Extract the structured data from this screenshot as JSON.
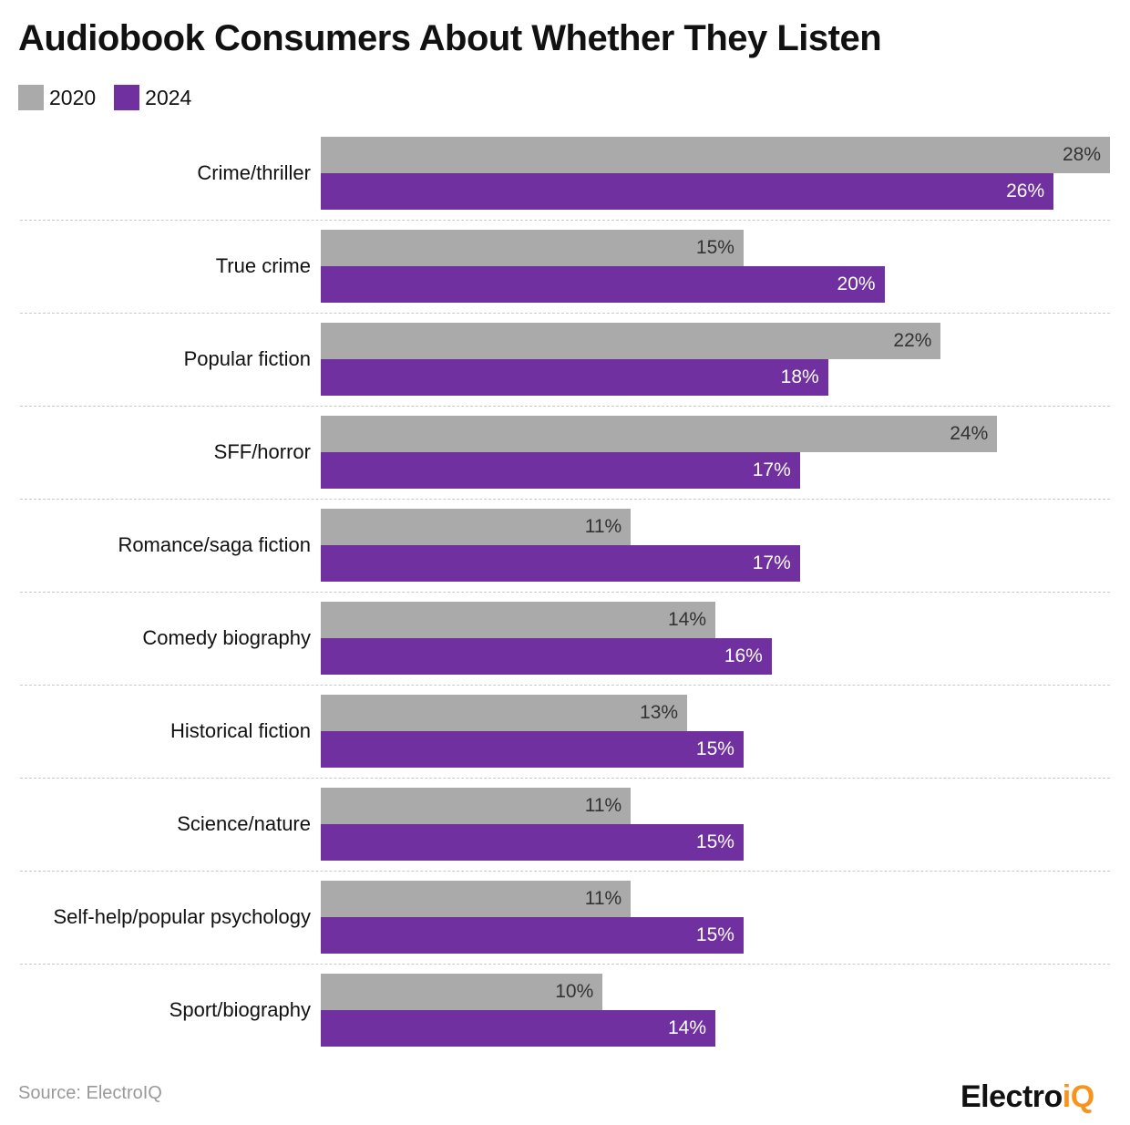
{
  "chart_data": {
    "type": "bar",
    "orientation": "horizontal",
    "title": "Audiobook Consumers About Whether They Listen",
    "categories": [
      "Crime/thriller",
      "True crime",
      "Popular fiction",
      "SFF/horror",
      "Romance/saga fiction",
      "Comedy biography",
      "Historical fiction",
      "Science/nature",
      "Self-help/popular psychology",
      "Sport/biography"
    ],
    "series": [
      {
        "name": "2020",
        "color": "#aaaaaa",
        "values": [
          28,
          15,
          22,
          24,
          11,
          14,
          13,
          11,
          11,
          10
        ]
      },
      {
        "name": "2024",
        "color": "#7030a0",
        "values": [
          26,
          20,
          18,
          17,
          17,
          16,
          15,
          15,
          15,
          14
        ]
      }
    ],
    "value_suffix": "%",
    "xlim": [
      0,
      28
    ],
    "grid": false,
    "legend_position": "top-left"
  },
  "source": "Source: ElectroIQ",
  "logo": {
    "text_main": "Electro",
    "text_accent": "iQ",
    "accent_color": "#f7941d"
  }
}
